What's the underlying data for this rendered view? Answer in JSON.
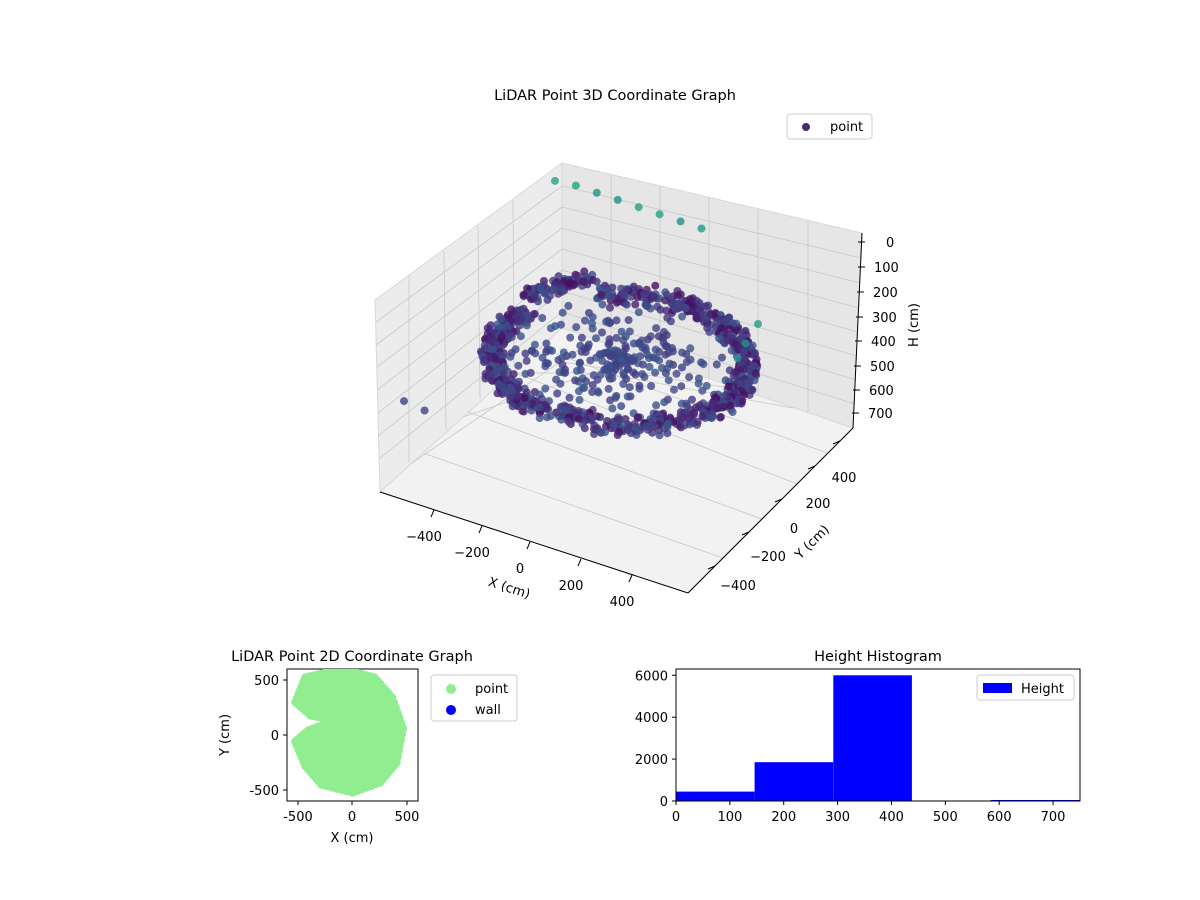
{
  "chart_data": [
    {
      "type": "scatter",
      "projection": "3d",
      "title": "LiDAR Point 3D Coordinate Graph",
      "xlabel": "X (cm)",
      "ylabel": "Y (cm)",
      "zlabel": "H (cm)",
      "xlim": [
        -560,
        560
      ],
      "ylim": [
        -560,
        560
      ],
      "zlim": [
        760,
        -20
      ],
      "x_ticks": [
        "−400",
        "−200",
        "0",
        "200",
        "400"
      ],
      "y_ticks": [
        "−400",
        "−200",
        "0",
        "200",
        "400"
      ],
      "z_ticks": [
        "0",
        "100",
        "200",
        "300",
        "400",
        "500",
        "600",
        "700"
      ],
      "grid": true,
      "legend": {
        "position": "upper-right",
        "entries": [
          {
            "name": "point",
            "color": "#482878"
          }
        ]
      },
      "colormap": "viridis",
      "series": [
        {
          "name": "point",
          "shape": "ring of wall points (approx.)",
          "ring_samples": [
            {
              "x": 0,
              "y": 420,
              "h": 330
            },
            {
              "x": 300,
              "y": 300,
              "h": 340
            },
            {
              "x": 430,
              "y": 0,
              "h": 350
            },
            {
              "x": 300,
              "y": -300,
              "h": 360
            },
            {
              "x": 0,
              "y": -430,
              "h": 370
            },
            {
              "x": -300,
              "y": -300,
              "h": 350
            },
            {
              "x": -430,
              "y": 0,
              "h": 330
            },
            {
              "x": -300,
              "y": 300,
              "h": 300
            }
          ],
          "outliers": [
            {
              "x": -500,
              "y": 420,
              "h": 50
            },
            {
              "x": -420,
              "y": 420,
              "h": 40
            },
            {
              "x": -340,
              "y": 420,
              "h": 40
            },
            {
              "x": -260,
              "y": 420,
              "h": 40
            },
            {
              "x": -180,
              "y": 420,
              "h": 40
            },
            {
              "x": -100,
              "y": 420,
              "h": 40
            },
            {
              "x": -20,
              "y": 420,
              "h": 40
            },
            {
              "x": 60,
              "y": 420,
              "h": 40
            },
            {
              "x": 480,
              "y": 60,
              "h": 60
            },
            {
              "x": 500,
              "y": -60,
              "h": 60
            },
            {
              "x": 520,
              "y": -150,
              "h": 60
            },
            {
              "x": -520,
              "y": -480,
              "h": 420
            },
            {
              "x": -480,
              "y": -420,
              "h": 480
            }
          ]
        }
      ]
    },
    {
      "type": "scatter",
      "title": "LiDAR Point 2D Coordinate Graph",
      "xlabel": "X (cm)",
      "ylabel": "Y (cm)",
      "xlim": [
        -600,
        600
      ],
      "ylim": [
        -600,
        600
      ],
      "x_ticks": [
        -500,
        0,
        500
      ],
      "y_ticks": [
        -500,
        0,
        500
      ],
      "legend": {
        "position": "outside-right",
        "entries": [
          {
            "name": "point",
            "color": "#90ee90"
          },
          {
            "name": "wall",
            "color": "#0000ff"
          }
        ]
      },
      "series": [
        {
          "name": "point",
          "color": "#90ee90",
          "outline": [
            {
              "x": -30,
              "y": 580
            },
            {
              "x": 200,
              "y": 520
            },
            {
              "x": 360,
              "y": 340
            },
            {
              "x": 460,
              "y": 60
            },
            {
              "x": 400,
              "y": -250
            },
            {
              "x": 250,
              "y": -430
            },
            {
              "x": 0,
              "y": -520
            },
            {
              "x": -280,
              "y": -450
            },
            {
              "x": -430,
              "y": -280
            },
            {
              "x": -520,
              "y": -60
            },
            {
              "x": -400,
              "y": 40
            },
            {
              "x": -160,
              "y": 130
            },
            {
              "x": -380,
              "y": 180
            },
            {
              "x": -520,
              "y": 300
            },
            {
              "x": -430,
              "y": 520
            },
            {
              "x": -220,
              "y": 570
            }
          ]
        },
        {
          "name": "wall",
          "color": "#0000ff",
          "points": []
        }
      ]
    },
    {
      "type": "bar",
      "subtype": "histogram",
      "title": "Height Histogram",
      "xlim": [
        0,
        750
      ],
      "ylim": [
        0,
        6300
      ],
      "x_ticks": [
        0,
        100,
        200,
        300,
        400,
        500,
        600,
        700
      ],
      "y_ticks": [
        0,
        2000,
        4000,
        6000
      ],
      "color": "#0000ff",
      "legend": {
        "position": "upper-right",
        "entries": [
          {
            "name": "Height",
            "color": "#0000ff"
          }
        ]
      },
      "bins": [
        {
          "x0": 0,
          "x1": 146,
          "count": 450
        },
        {
          "x0": 146,
          "x1": 292,
          "count": 1850
        },
        {
          "x0": 292,
          "x1": 438,
          "count": 6000
        },
        {
          "x0": 438,
          "x1": 584,
          "count": 0
        },
        {
          "x0": 584,
          "x1": 750,
          "count": 50
        }
      ]
    }
  ]
}
